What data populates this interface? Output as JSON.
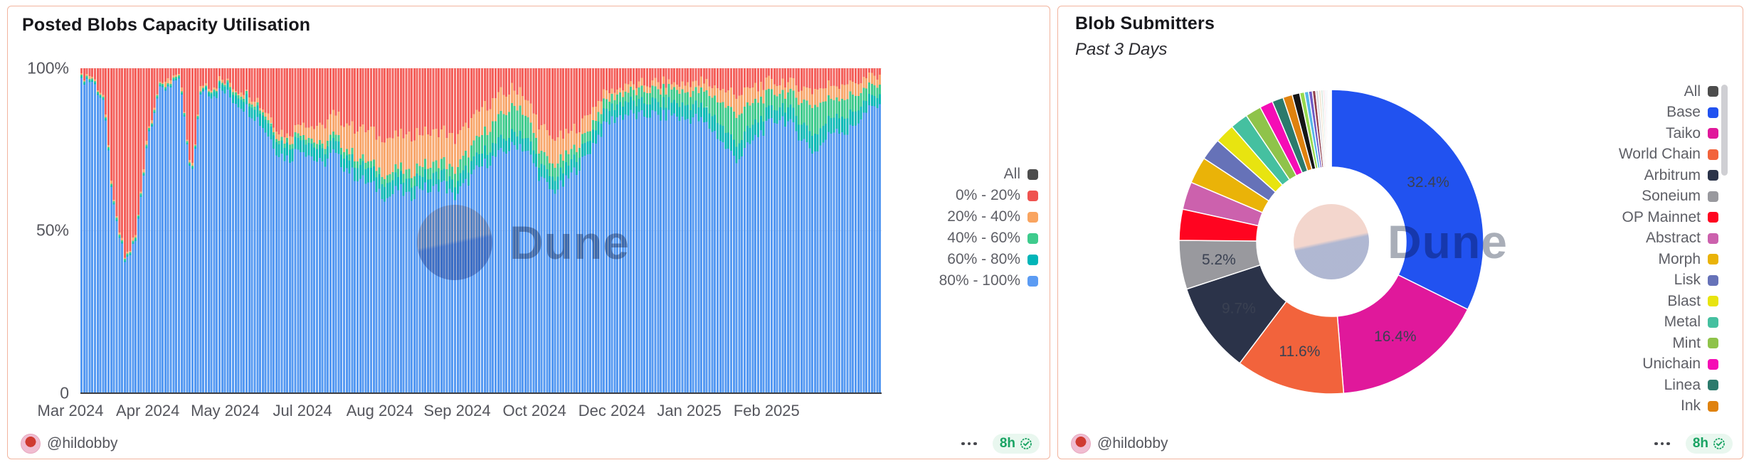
{
  "watermark_text": "Dune",
  "cards": [
    {
      "title": "Posted Blobs Capacity Utilisation",
      "author": "@hildobby",
      "refresh_badge": "8h",
      "legend": [
        {
          "label": "All",
          "color": "#4d4d4d"
        },
        {
          "label": "0% - 20%",
          "color": "#ef5350"
        },
        {
          "label": "20% - 40%",
          "color": "#f9a460"
        },
        {
          "label": "40% - 60%",
          "color": "#3ecb8d"
        },
        {
          "label": "60% - 80%",
          "color": "#00b5b8"
        },
        {
          "label": "80% - 100%",
          "color": "#5b9bf3"
        }
      ]
    },
    {
      "title": "Blob Submitters",
      "subtitle": "Past 3 Days",
      "author": "@hildobby",
      "refresh_badge": "8h",
      "legend": [
        {
          "label": "All",
          "color": "#4d4d4d"
        },
        {
          "label": "Base",
          "color": "#2152f0"
        },
        {
          "label": "Taiko",
          "color": "#e0189b"
        },
        {
          "label": "World Chain",
          "color": "#f2633c"
        },
        {
          "label": "Arbitrum",
          "color": "#2b3349"
        },
        {
          "label": "Soneium",
          "color": "#99999e"
        },
        {
          "label": "OP Mainnet",
          "color": "#ff0420"
        },
        {
          "label": "Abstract",
          "color": "#cc61ad"
        },
        {
          "label": "Morph",
          "color": "#eab308"
        },
        {
          "label": "Lisk",
          "color": "#6672b8"
        },
        {
          "label": "Blast",
          "color": "#e8e410"
        },
        {
          "label": "Metal",
          "color": "#45c0a0"
        },
        {
          "label": "Mint",
          "color": "#8fc34a"
        },
        {
          "label": "Unichain",
          "color": "#f50db5"
        },
        {
          "label": "Linea",
          "color": "#2c7a6c"
        },
        {
          "label": "Ink",
          "color": "#df820f"
        }
      ]
    }
  ],
  "chart_data": [
    {
      "type": "bar",
      "stacked": true,
      "normalized_percent": true,
      "title": "Posted Blobs Capacity Utilisation",
      "x_ticks": [
        "Mar 2024",
        "Apr 2024",
        "May 2024",
        "Jul 2024",
        "Aug 2024",
        "Sep 2024",
        "Oct 2024",
        "Dec 2024",
        "Jan 2025",
        "Feb 2025"
      ],
      "y_ticks": [
        "100%",
        "50%",
        "0"
      ],
      "ylim": [
        0,
        100
      ],
      "grid": "horizontal at 50% and 100%",
      "legend_position": "right",
      "series_order_bottom_to_top": [
        "80% - 100%",
        "60% - 80%",
        "40% - 60%",
        "20% - 40%",
        "0% - 20%"
      ],
      "colors_bottom_to_top": [
        "#5599f2",
        "#0cb9b6",
        "#41cb8e",
        "#f8a86e",
        "#f4615c"
      ],
      "stacks_note": "approx sampled every ~5 days, Mar 2024 to mid Feb 2025, values are % of daily bar bottom-to-top",
      "stacks": [
        [
          97,
          0.5,
          0.5,
          0.5,
          1.5
        ],
        [
          96,
          0.5,
          0.5,
          0.5,
          2.5
        ],
        [
          90,
          0.5,
          0.5,
          0.5,
          8.5
        ],
        [
          55,
          0.5,
          0.5,
          0.5,
          43.5
        ],
        [
          40,
          0.5,
          0.5,
          0.5,
          58.5
        ],
        [
          47,
          0.5,
          0.5,
          0.5,
          51.5
        ],
        [
          78,
          0.5,
          0.5,
          1,
          20
        ],
        [
          92,
          0.5,
          0.5,
          1,
          6
        ],
        [
          95,
          0.5,
          0.5,
          1,
          3
        ],
        [
          97,
          0.5,
          0.5,
          0.5,
          1.5
        ],
        [
          65,
          0.5,
          0.5,
          0.5,
          33.5
        ],
        [
          94,
          0.5,
          0.5,
          1,
          4
        ],
        [
          92,
          1.5,
          0.5,
          1,
          5
        ],
        [
          93,
          2,
          0.5,
          1,
          3.5
        ],
        [
          90,
          2.5,
          1,
          1,
          5.5
        ],
        [
          88,
          3,
          1,
          1,
          7
        ],
        [
          85,
          3.5,
          1,
          1.5,
          9
        ],
        [
          80,
          4,
          1,
          1.5,
          13.5
        ],
        [
          74,
          4,
          1,
          2,
          19
        ],
        [
          72,
          4,
          1.5,
          2,
          20.5
        ],
        [
          76,
          3.5,
          1.5,
          3,
          16
        ],
        [
          73,
          4,
          1.5,
          4,
          17.5
        ],
        [
          70,
          4,
          1.5,
          6,
          18.5
        ],
        [
          74,
          3.5,
          2,
          6,
          14.5
        ],
        [
          70,
          4,
          2,
          8,
          16
        ],
        [
          67,
          4,
          2,
          9,
          18
        ],
        [
          65,
          4.5,
          2,
          10,
          18.5
        ],
        [
          63,
          4.5,
          2,
          10,
          20.5
        ],
        [
          60,
          4.5,
          2.5,
          11,
          22
        ],
        [
          63,
          4,
          2.5,
          10,
          20.5
        ],
        [
          60,
          4,
          3,
          11,
          22
        ],
        [
          64,
          4,
          3,
          10,
          19
        ],
        [
          62,
          4,
          3.5,
          10,
          20.5
        ],
        [
          65,
          3.5,
          3.5,
          9,
          19
        ],
        [
          60,
          4,
          4,
          10,
          22
        ],
        [
          64,
          4,
          4.5,
          9,
          18.5
        ],
        [
          68,
          4,
          5,
          8,
          15
        ],
        [
          71,
          4,
          6,
          8,
          11
        ],
        [
          73,
          4,
          7,
          7,
          9
        ],
        [
          75,
          4,
          8,
          6,
          7
        ],
        [
          77,
          4,
          8,
          5,
          6
        ],
        [
          73,
          4,
          6,
          6,
          11
        ],
        [
          66,
          4,
          4,
          8,
          18
        ],
        [
          62,
          4,
          4,
          8,
          22
        ],
        [
          64,
          4,
          4,
          7,
          21
        ],
        [
          68,
          4,
          3,
          6,
          19
        ],
        [
          72,
          4,
          3,
          5,
          16
        ],
        [
          78,
          4,
          3,
          4,
          11
        ],
        [
          83,
          4,
          3,
          2.5,
          7.5
        ],
        [
          85,
          4,
          3,
          2,
          6
        ],
        [
          86,
          4,
          3,
          2,
          5
        ],
        [
          85,
          4,
          3.5,
          2,
          5.5
        ],
        [
          86,
          4,
          3.5,
          2,
          4.5
        ],
        [
          85,
          4,
          4,
          2,
          5
        ],
        [
          86,
          4,
          4,
          2,
          4
        ],
        [
          84,
          4.5,
          4,
          2.5,
          5
        ],
        [
          85,
          4,
          4,
          2.5,
          4.5
        ],
        [
          83,
          4.5,
          5,
          3,
          4.5
        ],
        [
          80,
          5,
          6,
          4,
          5
        ],
        [
          75,
          5,
          8,
          5,
          7
        ],
        [
          72,
          5,
          9,
          6,
          8
        ],
        [
          76,
          5,
          7,
          5,
          7
        ],
        [
          80,
          4.5,
          6,
          4,
          5.5
        ],
        [
          83,
          4,
          5,
          3.5,
          4.5
        ],
        [
          85,
          4,
          4,
          3,
          4
        ],
        [
          82,
          4.5,
          5,
          4,
          4.5
        ],
        [
          78,
          5,
          7,
          4.5,
          5.5
        ],
        [
          74,
          5.5,
          9,
          5,
          6.5
        ],
        [
          78,
          5,
          7,
          4.5,
          5.5
        ],
        [
          82,
          4.5,
          5,
          4,
          4.5
        ],
        [
          80,
          5,
          6,
          4,
          5
        ],
        [
          84,
          4,
          4.5,
          3.5,
          4
        ],
        [
          87,
          3.5,
          3.5,
          3,
          3
        ],
        [
          89,
          3,
          3,
          2.5,
          2.5
        ]
      ]
    },
    {
      "type": "pie",
      "donut": true,
      "title": "Blob Submitters",
      "subtitle": "Past 3 Days",
      "legend_position": "right",
      "start_angle": "12 o'clock, clockwise",
      "slices": [
        {
          "name": "Base",
          "value": 32.4,
          "color": "#2152f0",
          "label": "32.4%"
        },
        {
          "name": "Taiko",
          "value": 16.4,
          "color": "#e0189b",
          "label": "16.4%"
        },
        {
          "name": "World Chain",
          "value": 11.6,
          "color": "#f2633c",
          "label": "11.6%"
        },
        {
          "name": "Arbitrum",
          "value": 9.7,
          "color": "#2b3349",
          "label": "9.7%"
        },
        {
          "name": "Soneium",
          "value": 5.2,
          "color": "#99999e",
          "label": "5.2%"
        },
        {
          "name": "OP Mainnet",
          "value": 3.3,
          "color": "#ff0420"
        },
        {
          "name": "Abstract",
          "value": 2.95,
          "color": "#cc61ad"
        },
        {
          "name": "Morph",
          "value": 2.85,
          "color": "#eab308"
        },
        {
          "name": "Lisk",
          "value": 2.35,
          "color": "#6672b8"
        },
        {
          "name": "Blast",
          "value": 2.1,
          "color": "#e8e410"
        },
        {
          "name": "Metal",
          "value": 1.9,
          "color": "#45c0a0"
        },
        {
          "name": "Mint",
          "value": 1.7,
          "color": "#8fc34a"
        },
        {
          "name": "Unichain",
          "value": 1.4,
          "color": "#f50db5"
        },
        {
          "name": "Linea",
          "value": 1.2,
          "color": "#2c7a6c"
        },
        {
          "name": "Ink",
          "value": 1.0,
          "color": "#df820f"
        }
      ],
      "unlabeled_tail": [
        {
          "value": 0.8,
          "color": "#161616"
        },
        {
          "value": 0.5,
          "color": "#96d94e"
        },
        {
          "value": 0.45,
          "color": "#57b7e8"
        },
        {
          "value": 0.4,
          "color": "#6f5bc6"
        },
        {
          "value": 0.35,
          "color": "#913f4e"
        },
        {
          "value": 0.3,
          "color": "#d9d9de"
        },
        {
          "value": 0.25,
          "color": "#f1e3cf"
        },
        {
          "value": 0.22,
          "color": "#cfe3d9"
        },
        {
          "value": 0.2,
          "color": "#f7dbe3"
        },
        {
          "value": 0.18,
          "color": "#e3ecf7"
        },
        {
          "value": 0.15,
          "color": "#efe6f4"
        },
        {
          "value": 0.12,
          "color": "#fbf2cc"
        },
        {
          "value": 0.1,
          "color": "#e0e0e0"
        },
        {
          "value": 0.08,
          "color": "#f3e8da"
        },
        {
          "value": 0.05,
          "color": "#fafafa"
        }
      ]
    }
  ]
}
